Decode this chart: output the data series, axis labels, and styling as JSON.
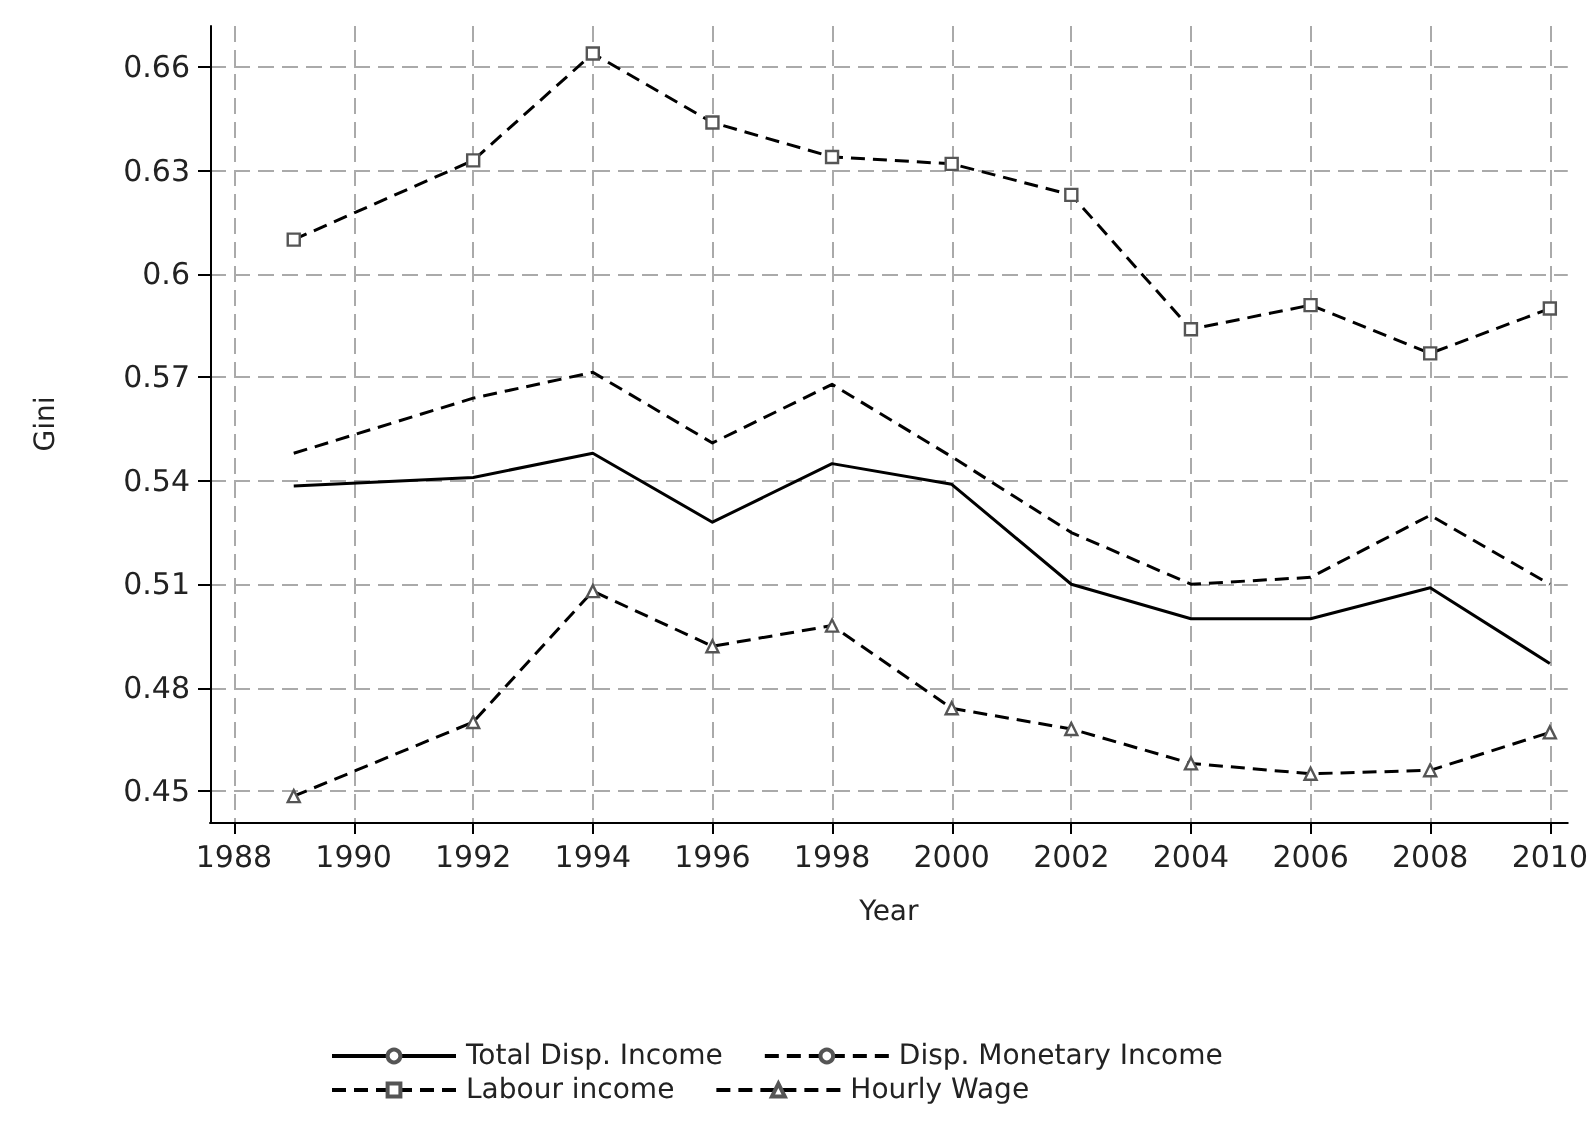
{
  "chart_data": {
    "type": "line",
    "xlabel": "Year",
    "ylabel": "Gini",
    "x": [
      1989,
      1992,
      1994,
      1996,
      1998,
      2000,
      2002,
      2004,
      2006,
      2008,
      2010
    ],
    "series": [
      {
        "name": "Total Disp. Income",
        "color": "#000000",
        "line_style": "solid",
        "marker": "none",
        "values": [
          0.5385,
          0.541,
          0.548,
          0.528,
          0.545,
          0.539,
          0.51,
          0.5,
          0.5,
          0.509,
          0.487
        ]
      },
      {
        "name": "Disp. Monetary Income",
        "color": "#000000",
        "line_style": "dashed",
        "marker": "none",
        "values": [
          0.548,
          0.564,
          0.5715,
          0.551,
          0.568,
          0.547,
          0.525,
          0.51,
          0.512,
          0.53,
          0.51
        ]
      },
      {
        "name": "Labour income",
        "color": "#000000",
        "line_style": "dashed",
        "marker": "square",
        "values": [
          0.61,
          0.633,
          0.664,
          0.644,
          0.634,
          0.632,
          0.623,
          0.584,
          0.591,
          0.577,
          0.59
        ]
      },
      {
        "name": "Hourly Wage",
        "color": "#000000",
        "line_style": "dashed",
        "marker": "triangle",
        "values": [
          0.4485,
          0.47,
          0.508,
          0.492,
          0.498,
          0.474,
          0.468,
          0.458,
          0.455,
          0.456,
          0.467
        ]
      }
    ],
    "xlim": [
      1987.6,
      2010.3
    ],
    "xticks": [
      1988,
      1990,
      1992,
      1994,
      1996,
      1998,
      2000,
      2002,
      2004,
      2006,
      2008,
      2010
    ],
    "ylim": [
      0.441,
      0.672
    ],
    "yticks": [
      0.45,
      0.48,
      0.51,
      0.54,
      0.57,
      0.6,
      0.63,
      0.66
    ],
    "grid": true,
    "legend": "bottom"
  }
}
